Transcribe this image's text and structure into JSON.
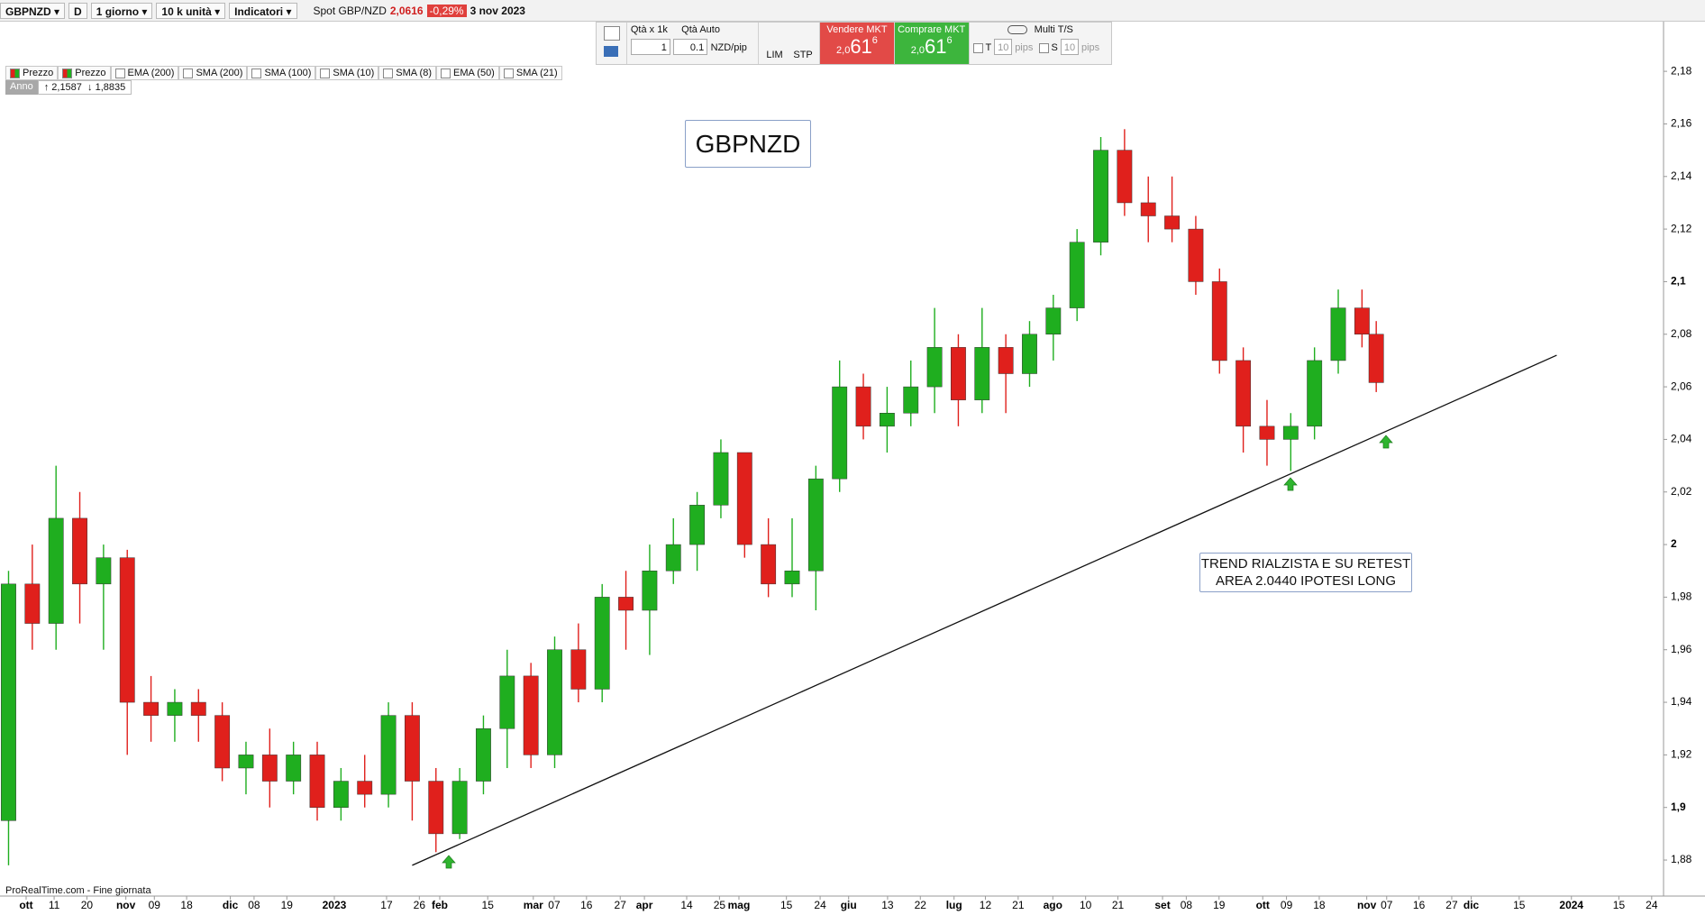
{
  "toolbar": {
    "symbol": "GBPNZD",
    "period_icon": "D",
    "timeframe": "1 giorno",
    "quantity": "10 k unità",
    "indicators": "Indicatori",
    "instrument": "Spot GBP/NZD",
    "price": "2,0616",
    "change": "-0,29%",
    "date": "3 nov 2023"
  },
  "order_panel": {
    "qty_label": "Qtà",
    "qty_unit": "x 1k",
    "qty_auto": "Qtà Auto",
    "qty": "1",
    "pip_value": "0.1",
    "pip_unit": "NZD/pip",
    "lim": "LIM",
    "stp": "STP",
    "sell_label": "Vendere MKT",
    "sell_price": [
      "2,0",
      "61",
      "6"
    ],
    "buy_label": "Comprare MKT",
    "buy_price": [
      "2,0",
      "61",
      "6"
    ],
    "multi": "Multi T/S",
    "t": "T",
    "t_pips": "10",
    "t_unit": "pips",
    "s": "S",
    "s_pips": "10",
    "s_unit": "pips"
  },
  "legend": {
    "items": [
      "Prezzo",
      "Prezzo",
      "EMA (200)",
      "SMA (200)",
      "SMA (100)",
      "SMA (10)",
      "SMA (8)",
      "EMA (50)",
      "SMA (21)"
    ],
    "period": "Anno",
    "high": "2,1587",
    "low": "1,8835"
  },
  "footer": "ProRealTime.com - Fine giornata",
  "chart_data": {
    "type": "candlestick",
    "title": "GBPNZD",
    "annotation": [
      "TREND RIALZISTA E SU RETEST",
      "AREA 2.0440 IPOTESI LONG"
    ],
    "up_color": "#1fae1f",
    "down_color": "#e0201c",
    "x": [
      0,
      5,
      10,
      15,
      20,
      25,
      30,
      35,
      40,
      45,
      50,
      55,
      60,
      65,
      70,
      75,
      80,
      85,
      90,
      95,
      100,
      105,
      110,
      115,
      120,
      125,
      130,
      135,
      140,
      145,
      150,
      155,
      160,
      165,
      170,
      175,
      180,
      185,
      190,
      195,
      200,
      205,
      210,
      215,
      220,
      225,
      230,
      235,
      240,
      245,
      250,
      255,
      260,
      265,
      270,
      275,
      280,
      285,
      288
    ],
    "open": [
      1.895,
      1.985,
      1.97,
      2.01,
      1.985,
      1.995,
      1.94,
      1.935,
      1.94,
      1.935,
      1.915,
      1.92,
      1.91,
      1.92,
      1.9,
      1.91,
      1.905,
      1.935,
      1.91,
      1.89,
      1.91,
      1.93,
      1.95,
      1.92,
      1.96,
      1.945,
      1.98,
      1.975,
      1.99,
      2.0,
      2.015,
      2.035,
      2.0,
      1.985,
      1.99,
      2.025,
      2.06,
      2.045,
      2.05,
      2.06,
      2.075,
      2.055,
      2.075,
      2.065,
      2.08,
      2.09,
      2.115,
      2.15,
      2.13,
      2.125,
      2.12,
      2.1,
      2.07,
      2.045,
      2.04,
      2.045,
      2.07,
      2.09,
      2.08
    ],
    "high": [
      1.99,
      2.0,
      2.03,
      2.02,
      2.0,
      1.998,
      1.95,
      1.945,
      1.945,
      1.94,
      1.925,
      1.93,
      1.925,
      1.925,
      1.915,
      1.92,
      1.94,
      1.94,
      1.915,
      1.915,
      1.935,
      1.96,
      1.955,
      1.965,
      1.97,
      1.985,
      1.99,
      2.0,
      2.01,
      2.02,
      2.04,
      2.035,
      2.01,
      2.01,
      2.03,
      2.07,
      2.065,
      2.06,
      2.07,
      2.09,
      2.08,
      2.09,
      2.08,
      2.085,
      2.095,
      2.12,
      2.155,
      2.158,
      2.14,
      2.14,
      2.125,
      2.105,
      2.075,
      2.055,
      2.05,
      2.075,
      2.097,
      2.097,
      2.085
    ],
    "low": [
      1.878,
      1.96,
      1.96,
      1.97,
      1.96,
      1.92,
      1.925,
      1.925,
      1.925,
      1.91,
      1.905,
      1.9,
      1.905,
      1.895,
      1.895,
      1.9,
      1.9,
      1.895,
      1.883,
      1.888,
      1.905,
      1.915,
      1.915,
      1.915,
      1.94,
      1.94,
      1.96,
      1.958,
      1.985,
      1.99,
      2.01,
      1.995,
      1.98,
      1.98,
      1.975,
      2.02,
      2.04,
      2.035,
      2.045,
      2.05,
      2.045,
      2.05,
      2.05,
      2.06,
      2.07,
      2.085,
      2.11,
      2.125,
      2.115,
      2.115,
      2.095,
      2.065,
      2.035,
      2.03,
      2.028,
      2.04,
      2.065,
      2.075,
      2.058
    ],
    "close": [
      1.985,
      1.97,
      2.01,
      1.985,
      1.995,
      1.94,
      1.935,
      1.94,
      1.935,
      1.915,
      1.92,
      1.91,
      1.92,
      1.9,
      1.91,
      1.905,
      1.935,
      1.91,
      1.89,
      1.91,
      1.93,
      1.95,
      1.92,
      1.96,
      1.945,
      1.98,
      1.975,
      1.99,
      2.0,
      2.015,
      2.035,
      2.0,
      1.985,
      1.99,
      2.025,
      2.06,
      2.045,
      2.05,
      2.06,
      2.075,
      2.055,
      2.075,
      2.065,
      2.08,
      2.09,
      2.115,
      2.15,
      2.13,
      2.125,
      2.12,
      2.1,
      2.07,
      2.045,
      2.04,
      2.045,
      2.07,
      2.09,
      2.08,
      2.0616
    ],
    "trendline": {
      "x": [
        85,
        326
      ],
      "y": [
        1.878,
        2.072
      ]
    },
    "xlim": [
      -1.8,
      348.5
    ],
    "ylim": [
      1.8663,
      2.1989
    ],
    "yticks": [
      {
        "value": 2.18,
        "label": "2,18"
      },
      {
        "value": 2.16,
        "label": "2,16"
      },
      {
        "value": 2.14,
        "label": "2,14"
      },
      {
        "value": 2.12,
        "label": "2,12"
      },
      {
        "value": 2.1,
        "label": "2,1"
      },
      {
        "value": 2.08,
        "label": "2,08"
      },
      {
        "value": 2.06,
        "label": "2,06"
      },
      {
        "value": 2.04,
        "label": "2,04"
      },
      {
        "value": 2.02,
        "label": "2,02"
      },
      2,
      {
        "value": 1.98,
        "label": "1,98"
      },
      {
        "value": 1.96,
        "label": "1,96"
      },
      {
        "value": 1.94,
        "label": "1,94"
      },
      {
        "value": 1.92,
        "label": "1,92"
      },
      {
        "value": 1.9,
        "label": "1,9"
      },
      {
        "value": 1.88,
        "label": "1,88"
      }
    ],
    "xticks": [
      {
        "value": 3.7,
        "label": "ott"
      },
      {
        "value": 9.6,
        "label": "11"
      },
      {
        "value": 16.5,
        "label": "20"
      },
      {
        "value": 24.7,
        "label": "nov"
      },
      {
        "value": 30.7,
        "label": "09"
      },
      {
        "value": 37.5,
        "label": "18"
      },
      {
        "value": 46.7,
        "label": "dic"
      },
      {
        "value": 51.7,
        "label": "08"
      },
      {
        "value": 58.6,
        "label": "19"
      },
      {
        "value": 68.6,
        "label": "2023"
      },
      {
        "value": 79.6,
        "label": "17"
      },
      {
        "value": 86.5,
        "label": "26"
      },
      {
        "value": 90.8,
        "label": "feb"
      },
      {
        "value": 100.9,
        "label": "15"
      },
      {
        "value": 110.5,
        "label": "mar"
      },
      {
        "value": 114.9,
        "label": "07"
      },
      {
        "value": 121.7,
        "label": "16"
      },
      {
        "value": 128.8,
        "label": "27"
      },
      {
        "value": 133.9,
        "label": "apr"
      },
      {
        "value": 142.8,
        "label": "14"
      },
      {
        "value": 149.7,
        "label": "25"
      },
      {
        "value": 153.8,
        "label": "mag"
      },
      {
        "value": 163.8,
        "label": "15"
      },
      {
        "value": 170.9,
        "label": "24"
      },
      {
        "value": 176.9,
        "label": "giu"
      },
      {
        "value": 185.1,
        "label": "13"
      },
      {
        "value": 192,
        "label": "22"
      },
      {
        "value": 199.1,
        "label": "lug"
      },
      {
        "value": 205.7,
        "label": "12"
      },
      {
        "value": 212.6,
        "label": "21"
      },
      {
        "value": 219.9,
        "label": "ago"
      },
      {
        "value": 226.8,
        "label": "10"
      },
      {
        "value": 233.6,
        "label": "21"
      },
      {
        "value": 243,
        "label": "set"
      },
      {
        "value": 248,
        "label": "08"
      },
      {
        "value": 254.9,
        "label": "19"
      },
      {
        "value": 264.1,
        "label": "ott"
      },
      {
        "value": 269.1,
        "label": "09"
      },
      {
        "value": 276,
        "label": "18"
      },
      {
        "value": 286,
        "label": "nov"
      },
      {
        "value": 290.2,
        "label": "07"
      },
      {
        "value": 297,
        "label": "16"
      },
      {
        "value": 303.9,
        "label": "27"
      },
      {
        "value": 308,
        "label": "dic"
      },
      {
        "value": 318.1,
        "label": "15"
      },
      {
        "value": 329.1,
        "label": "2024"
      },
      {
        "value": 339.1,
        "label": "15"
      },
      {
        "value": 346,
        "label": "24"
      }
    ]
  }
}
